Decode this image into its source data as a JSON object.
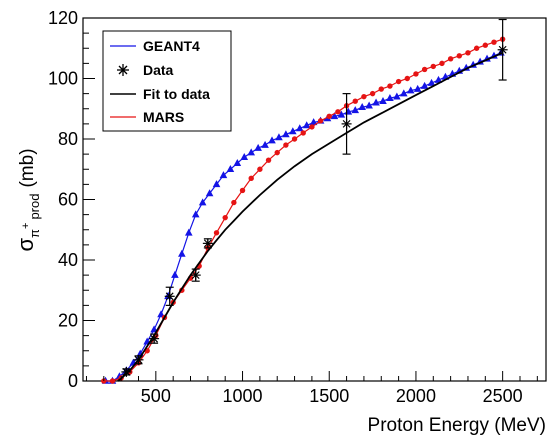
{
  "chart_data": {
    "type": "line",
    "title": "",
    "xlabel": "Proton Energy (MeV)",
    "ylabel": {
      "base": "σ",
      "sub_pi": "π",
      "sup_plus": "+",
      "sub_prod": "prod",
      "unit": "(mb)"
    },
    "xlim": [
      80,
      2750
    ],
    "ylim": [
      0,
      120
    ],
    "xticks": [
      500,
      1000,
      1500,
      2000,
      2500
    ],
    "yticks": [
      0,
      20,
      40,
      60,
      80,
      100,
      120
    ],
    "grid": false,
    "legend_position": "top-left",
    "colors": {
      "geant4": "#1414e6",
      "data": "#000000",
      "fit": "#000000",
      "mars": "#e61414"
    },
    "legend": [
      {
        "key": "geant4",
        "label": "GEANT4",
        "style": "line"
      },
      {
        "key": "data",
        "label": "Data",
        "style": "star"
      },
      {
        "key": "fit",
        "label": "Fit to data",
        "style": "line"
      },
      {
        "key": "mars",
        "label": "MARS",
        "style": "line"
      }
    ],
    "series": [
      {
        "key": "geant4",
        "marker": "triangle",
        "x": [
          210,
          250,
          290,
          330,
          370,
          410,
          450,
          490,
          530,
          570,
          610,
          650,
          690,
          730,
          770,
          810,
          850,
          890,
          930,
          970,
          1010,
          1050,
          1090,
          1130,
          1170,
          1210,
          1250,
          1290,
          1330,
          1370,
          1410,
          1450,
          1490,
          1530,
          1570,
          1610,
          1650,
          1690,
          1730,
          1770,
          1810,
          1850,
          1890,
          1930,
          1970,
          2010,
          2050,
          2090,
          2130,
          2170,
          2210,
          2250,
          2290,
          2330,
          2370,
          2410,
          2450,
          2490
        ],
        "y": [
          0,
          0,
          1.5,
          3.5,
          6,
          9,
          13,
          17,
          22,
          28,
          35,
          42,
          49,
          55,
          59,
          62,
          65,
          68,
          70,
          72,
          74,
          75.5,
          77,
          78,
          79.5,
          80.5,
          81.5,
          82.5,
          83.5,
          84.5,
          85.5,
          86,
          86.8,
          87.5,
          88,
          89,
          89.5,
          90.5,
          91,
          92,
          92.5,
          93.5,
          94,
          95,
          96,
          96.5,
          97.5,
          98.5,
          99.5,
          100.5,
          101.5,
          102.5,
          103.5,
          104.5,
          105.5,
          106.5,
          107.5,
          108.5
        ]
      },
      {
        "key": "mars",
        "marker": "circle",
        "x": [
          200,
          250,
          300,
          350,
          400,
          450,
          500,
          550,
          600,
          650,
          700,
          750,
          800,
          850,
          900,
          950,
          1000,
          1050,
          1100,
          1150,
          1200,
          1250,
          1300,
          1350,
          1400,
          1450,
          1500,
          1550,
          1600,
          1650,
          1700,
          1750,
          1800,
          1850,
          1900,
          1950,
          2000,
          2050,
          2100,
          2150,
          2200,
          2250,
          2300,
          2350,
          2400,
          2450,
          2500
        ],
        "y": [
          0,
          0,
          1,
          3,
          6,
          10,
          15,
          21,
          26,
          30,
          34,
          38,
          44,
          49,
          54,
          59,
          63,
          67,
          70,
          73,
          75.5,
          78,
          80,
          82,
          84,
          86,
          87.5,
          89,
          91,
          92.5,
          94,
          95,
          96.5,
          97.5,
          99,
          100,
          101.5,
          103,
          104,
          105,
          106.5,
          107.5,
          108.5,
          110,
          111,
          112,
          113
        ]
      },
      {
        "key": "fit",
        "marker": "none",
        "x": [
          280,
          300,
          350,
          400,
          450,
          500,
          550,
          600,
          650,
          700,
          750,
          800,
          850,
          900,
          950,
          1000,
          1100,
          1200,
          1300,
          1400,
          1500,
          1600,
          1700,
          1800,
          1900,
          2000,
          2100,
          2200,
          2300,
          2400,
          2500
        ],
        "y": [
          0,
          0.8,
          3.5,
          7,
          11.5,
          16,
          21,
          26,
          30.5,
          35,
          39,
          43,
          46.5,
          50,
          53,
          56,
          61.5,
          66.5,
          71,
          75,
          78.5,
          82,
          85.5,
          88.5,
          91.5,
          94.5,
          97.5,
          100.5,
          103.5,
          106,
          108.5
        ]
      },
      {
        "key": "data",
        "marker": "star",
        "x": [
          330,
          400,
          490,
          580,
          730,
          800,
          1600,
          2500
        ],
        "y": [
          3,
          7,
          14,
          28,
          35,
          45.5,
          85,
          109.5
        ],
        "yerr": [
          1,
          1.3,
          1.5,
          3,
          2,
          1.5,
          10,
          10
        ]
      }
    ]
  }
}
